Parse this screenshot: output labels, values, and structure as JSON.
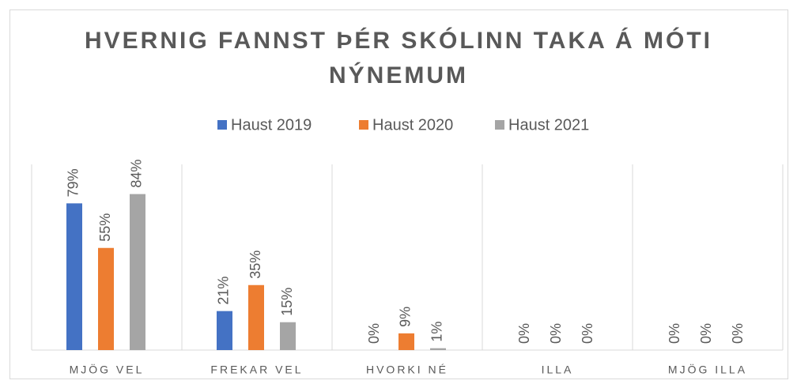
{
  "chart_data": {
    "type": "bar",
    "title": "HVERNIG FANNST ÞÉR SKÓLINN TAKA Á MÓTI NÝNEMUM",
    "categories": [
      "MJÖG VEL",
      "FREKAR VEL",
      "HVORKI NÉ",
      "ILLA",
      "MJÖG ILLA"
    ],
    "series": [
      {
        "name": "Haust 2019",
        "color": "#4472c4",
        "values": [
          79,
          21,
          0,
          0,
          0
        ],
        "value_labels": [
          "79%",
          "21%",
          "0%",
          "0%",
          "0%"
        ]
      },
      {
        "name": "Haust 2020",
        "color": "#ed7d31",
        "values": [
          55,
          35,
          9,
          0,
          0
        ],
        "value_labels": [
          "55%",
          "35%",
          "9%",
          "0%",
          "0%"
        ]
      },
      {
        "name": "Haust 2021",
        "color": "#a5a5a5",
        "values": [
          84,
          15,
          1,
          0,
          0
        ],
        "value_labels": [
          "84%",
          "15%",
          "1%",
          "0%",
          "0%"
        ]
      }
    ],
    "ylim": [
      0,
      100
    ],
    "legend": "top"
  }
}
